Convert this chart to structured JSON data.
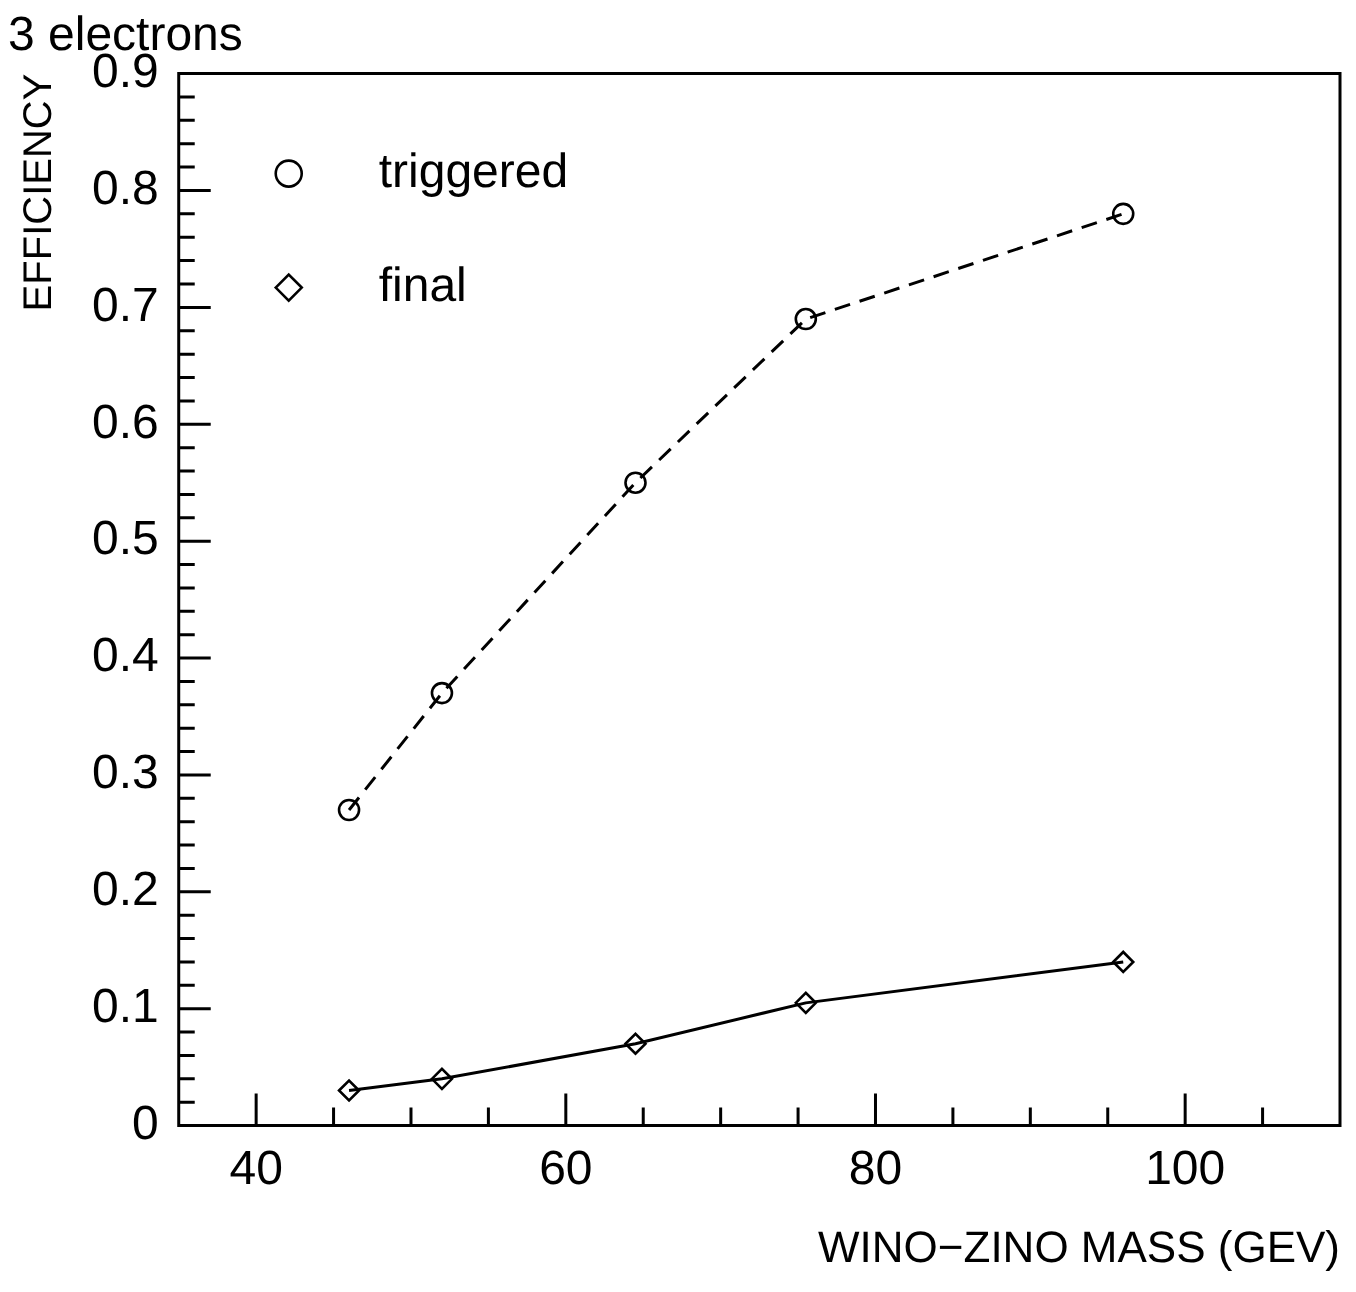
{
  "chart_data": {
    "type": "line",
    "title": "3 electrons",
    "xlabel": "WINO−ZINO MASS (GEV)",
    "ylabel": "EFFICIENCY",
    "xlim": [
      35,
      110
    ],
    "xticks": [
      {
        "value": 40,
        "label": "40"
      },
      {
        "value": 45,
        "label": null
      },
      {
        "value": 50,
        "label": null
      },
      {
        "value": 55,
        "label": null
      },
      {
        "value": 60,
        "label": "60"
      },
      {
        "value": 65,
        "label": null
      },
      {
        "value": 70,
        "label": null
      },
      {
        "value": 75,
        "label": null
      },
      {
        "value": 80,
        "label": "80"
      },
      {
        "value": 85,
        "label": null
      },
      {
        "value": 90,
        "label": null
      },
      {
        "value": 95,
        "label": null
      },
      {
        "value": 100,
        "label": "100"
      },
      {
        "value": 105,
        "label": null
      }
    ],
    "ylim": [
      0,
      0.9
    ],
    "yticks": [
      0,
      0.1,
      0.2,
      0.3,
      0.4,
      0.5,
      0.6,
      0.7,
      0.8,
      0.9
    ],
    "legend": "top left",
    "grid": false,
    "series": [
      {
        "name": "triggered",
        "color": "#000000",
        "marker": "circle",
        "line_style": "dashed",
        "x": [
          46,
          52,
          64.5,
          75.5,
          96
        ],
        "values": [
          0.27,
          0.37,
          0.55,
          0.69,
          0.78
        ]
      },
      {
        "name": "final",
        "color": "#000000",
        "marker": "diamond",
        "line_style": "solid",
        "x": [
          46,
          52,
          64.5,
          75.5,
          96
        ],
        "values": [
          0.03,
          0.04,
          0.07,
          0.105,
          0.14
        ]
      }
    ]
  }
}
